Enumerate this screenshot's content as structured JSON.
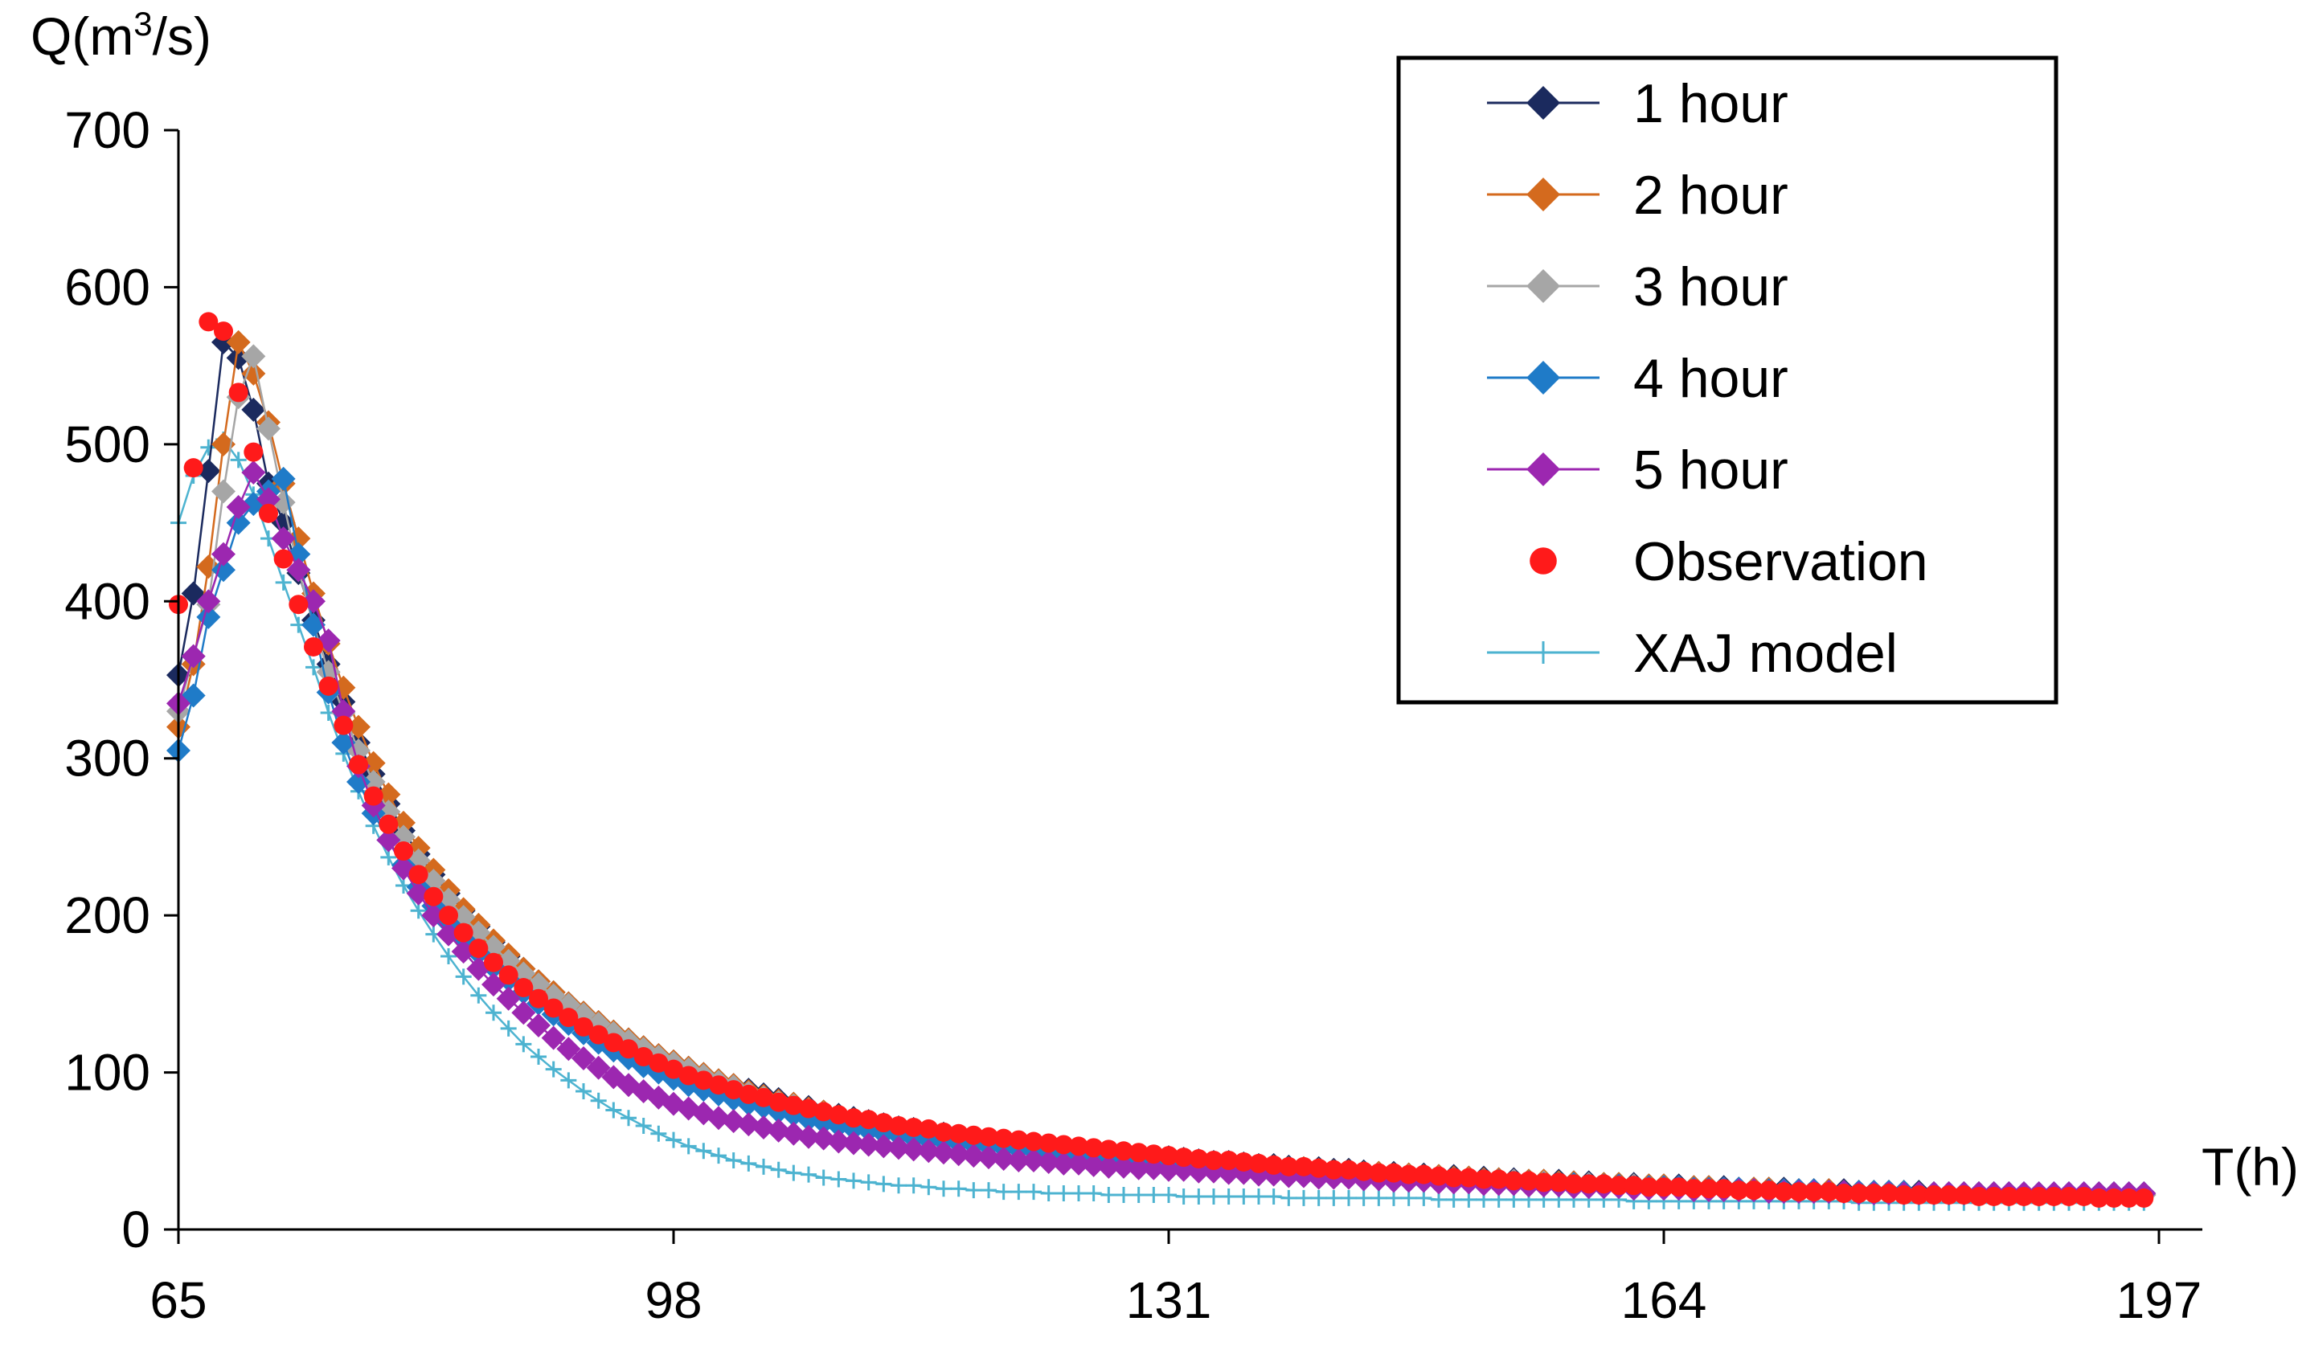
{
  "chart_data": {
    "type": "line",
    "ylabel_main": "Q(m",
    "ylabel_sup": "3",
    "ylabel_tail": "/s)",
    "xlabel": "T(h)",
    "xlim": [
      65,
      197
    ],
    "ylim": [
      0,
      700
    ],
    "x_ticks": [
      65,
      98,
      131,
      164,
      197
    ],
    "y_ticks": [
      0,
      100,
      200,
      300,
      400,
      500,
      600,
      700
    ],
    "x_tick_labels": [
      "65",
      "98",
      "131",
      "164",
      "197"
    ],
    "y_tick_labels": [
      "0",
      "100",
      "200",
      "300",
      "400",
      "500",
      "600",
      "700"
    ],
    "x_start": 65,
    "x_step": 1,
    "legend_position": "top-right",
    "series": [
      {
        "name": "1 hour",
        "color": "#1b2a5e",
        "marker": "diamond",
        "values": [
          353,
          405,
          483,
          565,
          555,
          522,
          475,
          450,
          418,
          388,
          360,
          336,
          310,
          290,
          271,
          254,
          239,
          226,
          214,
          203,
          193,
          183,
          174,
          166,
          158,
          151,
          144,
          138,
          132,
          126,
          121,
          116,
          111,
          107,
          103,
          99,
          95,
          92,
          89,
          86,
          83,
          80,
          78,
          75,
          73,
          71,
          69,
          67,
          65,
          64,
          62,
          61,
          59,
          58,
          57,
          56,
          55,
          54,
          53,
          52,
          51,
          50,
          49,
          48,
          47,
          46,
          46,
          45,
          44,
          43,
          43,
          42,
          41,
          41,
          40,
          39,
          39,
          38,
          38,
          37,
          36,
          36,
          35,
          35,
          34,
          34,
          33,
          33,
          32,
          32,
          31,
          31,
          31,
          30,
          30,
          29,
          29,
          29,
          28,
          28,
          28,
          27,
          27,
          27,
          26,
          26,
          26,
          26,
          25,
          25,
          25,
          25,
          24,
          24,
          24,
          24,
          24,
          23,
          23,
          23,
          23,
          23,
          23,
          22,
          22,
          22,
          22,
          22,
          22,
          22,
          22,
          22
        ]
      },
      {
        "name": "2 hour",
        "color": "#d46a1e",
        "marker": "diamond",
        "values": [
          320,
          360,
          422,
          500,
          565,
          545,
          514,
          475,
          440,
          405,
          373,
          345,
          320,
          297,
          277,
          259,
          243,
          229,
          216,
          204,
          194,
          184,
          175,
          166,
          158,
          151,
          144,
          138,
          132,
          126,
          121,
          116,
          111,
          107,
          103,
          99,
          95,
          92,
          88,
          85,
          82,
          80,
          77,
          75,
          72,
          70,
          68,
          66,
          64,
          63,
          61,
          60,
          58,
          57,
          56,
          55,
          54,
          53,
          52,
          51,
          50,
          49,
          48,
          47,
          46,
          45,
          45,
          44,
          43,
          42,
          42,
          41,
          40,
          40,
          39,
          39,
          38,
          37,
          37,
          36,
          36,
          35,
          35,
          34,
          34,
          33,
          33,
          32,
          32,
          31,
          31,
          31,
          30,
          30,
          29,
          29,
          29,
          28,
          28,
          28,
          27,
          27,
          27,
          26,
          26,
          26,
          26,
          25,
          25,
          25,
          25,
          24,
          24,
          24,
          24,
          24,
          23,
          23,
          23,
          23,
          23,
          23,
          22,
          22,
          22,
          22,
          22,
          22,
          22,
          22,
          22,
          22
        ]
      },
      {
        "name": "3 hour",
        "color": "#a6a6a6",
        "marker": "diamond",
        "values": [
          330,
          365,
          398,
          470,
          530,
          556,
          510,
          463,
          420,
          385,
          355,
          329,
          305,
          285,
          266,
          250,
          235,
          222,
          210,
          199,
          189,
          180,
          171,
          163,
          156,
          149,
          143,
          137,
          131,
          125,
          120,
          115,
          110,
          106,
          102,
          98,
          94,
          91,
          87,
          84,
          81,
          79,
          76,
          74,
          71,
          69,
          67,
          65,
          63,
          62,
          60,
          59,
          57,
          56,
          55,
          54,
          53,
          52,
          51,
          50,
          49,
          48,
          47,
          46,
          45,
          44,
          44,
          43,
          42,
          41,
          41,
          40,
          39,
          39,
          38,
          38,
          37,
          36,
          36,
          35,
          35,
          34,
          34,
          33,
          33,
          32,
          32,
          31,
          31,
          31,
          30,
          30,
          29,
          29,
          29,
          28,
          28,
          28,
          27,
          27,
          27,
          26,
          26,
          26,
          26,
          25,
          25,
          25,
          25,
          24,
          24,
          24,
          24,
          24,
          23,
          23,
          23,
          23,
          23,
          23,
          22,
          22,
          22,
          22,
          22,
          22,
          22,
          22,
          22,
          22,
          22,
          22
        ]
      },
      {
        "name": "4 hour",
        "color": "#1f7bc8",
        "marker": "diamond",
        "values": [
          305,
          340,
          390,
          420,
          450,
          462,
          470,
          478,
          430,
          385,
          342,
          310,
          285,
          265,
          248,
          232,
          218,
          206,
          195,
          185,
          176,
          167,
          159,
          151,
          144,
          137,
          131,
          125,
          119,
          114,
          109,
          104,
          100,
          96,
          92,
          89,
          86,
          83,
          80,
          78,
          75,
          73,
          70,
          68,
          66,
          64,
          63,
          61,
          60,
          58,
          57,
          56,
          55,
          54,
          53,
          52,
          51,
          50,
          49,
          48,
          47,
          46,
          45,
          45,
          44,
          43,
          42,
          42,
          41,
          40,
          40,
          39,
          38,
          38,
          37,
          37,
          36,
          36,
          35,
          35,
          34,
          34,
          33,
          33,
          32,
          32,
          31,
          31,
          31,
          30,
          30,
          29,
          29,
          29,
          28,
          28,
          28,
          27,
          27,
          27,
          27,
          26,
          26,
          26,
          26,
          25,
          25,
          25,
          25,
          25,
          24,
          24,
          24,
          24,
          24,
          24,
          23,
          23,
          23,
          23,
          23,
          23,
          23,
          23,
          23,
          23,
          23,
          23,
          23,
          23,
          23,
          23
        ]
      },
      {
        "name": "5 hour",
        "color": "#9c27b0",
        "marker": "diamond",
        "values": [
          335,
          365,
          400,
          430,
          460,
          482,
          465,
          440,
          420,
          400,
          375,
          330,
          295,
          270,
          248,
          230,
          214,
          200,
          188,
          177,
          166,
          156,
          147,
          138,
          130,
          122,
          115,
          109,
          103,
          97,
          92,
          88,
          84,
          80,
          77,
          74,
          71,
          69,
          67,
          65,
          63,
          61,
          59,
          58,
          56,
          55,
          54,
          53,
          52,
          51,
          50,
          49,
          48,
          47,
          46,
          45,
          44,
          44,
          43,
          42,
          42,
          41,
          40,
          40,
          39,
          39,
          38,
          38,
          37,
          37,
          36,
          36,
          35,
          35,
          34,
          34,
          33,
          33,
          33,
          32,
          32,
          31,
          31,
          31,
          30,
          30,
          30,
          29,
          29,
          29,
          28,
          28,
          28,
          27,
          27,
          27,
          27,
          26,
          26,
          26,
          26,
          25,
          25,
          25,
          25,
          25,
          24,
          24,
          24,
          24,
          24,
          24,
          23,
          23,
          23,
          23,
          23,
          23,
          23,
          23,
          23,
          23,
          23,
          23,
          23,
          23,
          23,
          23,
          23,
          23,
          23,
          23
        ]
      },
      {
        "name": "Observation",
        "color": "#ff1a1a",
        "marker": "circle",
        "values": [
          398,
          485,
          578,
          572,
          533,
          495,
          456,
          427,
          398,
          371,
          346,
          321,
          296,
          276,
          258,
          241,
          226,
          212,
          200,
          189,
          179,
          170,
          162,
          154,
          147,
          141,
          135,
          129,
          124,
          119,
          115,
          110,
          106,
          102,
          98,
          95,
          92,
          89,
          86,
          84,
          81,
          79,
          77,
          75,
          73,
          71,
          70,
          68,
          66,
          65,
          64,
          62,
          61,
          60,
          59,
          58,
          57,
          56,
          55,
          54,
          53,
          52,
          51,
          50,
          49,
          48,
          47,
          46,
          45,
          44,
          44,
          43,
          42,
          41,
          40,
          40,
          39,
          38,
          38,
          37,
          36,
          36,
          35,
          35,
          34,
          33,
          33,
          32,
          32,
          31,
          31,
          30,
          30,
          29,
          29,
          29,
          28,
          28,
          27,
          27,
          27,
          26,
          26,
          26,
          25,
          25,
          25,
          24,
          24,
          24,
          24,
          23,
          23,
          23,
          23,
          22,
          22,
          22,
          22,
          22,
          21,
          21,
          21,
          21,
          21,
          21,
          21,
          21,
          20,
          20,
          20,
          20
        ]
      },
      {
        "name": "XAJ model",
        "color": "#4db3d0",
        "marker": "plus",
        "values": [
          450,
          480,
          498,
          503,
          490,
          468,
          440,
          412,
          385,
          358,
          329,
          303,
          279,
          257,
          237,
          219,
          203,
          188,
          174,
          161,
          149,
          138,
          128,
          118,
          110,
          102,
          95,
          88,
          82,
          76,
          71,
          66,
          61,
          57,
          53,
          50,
          47,
          44,
          42,
          40,
          38,
          36,
          35,
          33,
          32,
          31,
          30,
          29,
          28,
          28,
          27,
          26,
          26,
          25,
          25,
          24,
          24,
          24,
          23,
          23,
          23,
          23,
          22,
          22,
          22,
          22,
          22,
          21,
          21,
          21,
          21,
          21,
          21,
          21,
          20,
          20,
          20,
          20,
          20,
          20,
          20,
          20,
          20,
          20,
          19,
          19,
          19,
          19,
          19,
          19,
          19,
          19,
          19,
          19,
          19,
          19,
          19,
          18,
          18,
          18,
          18,
          18,
          18,
          18,
          18,
          18,
          18,
          18,
          18,
          18,
          18,
          18,
          17,
          17,
          17,
          17,
          17,
          17,
          17,
          17,
          17,
          17,
          17,
          17,
          17,
          17,
          17,
          17,
          17,
          17,
          17,
          17
        ]
      }
    ]
  }
}
